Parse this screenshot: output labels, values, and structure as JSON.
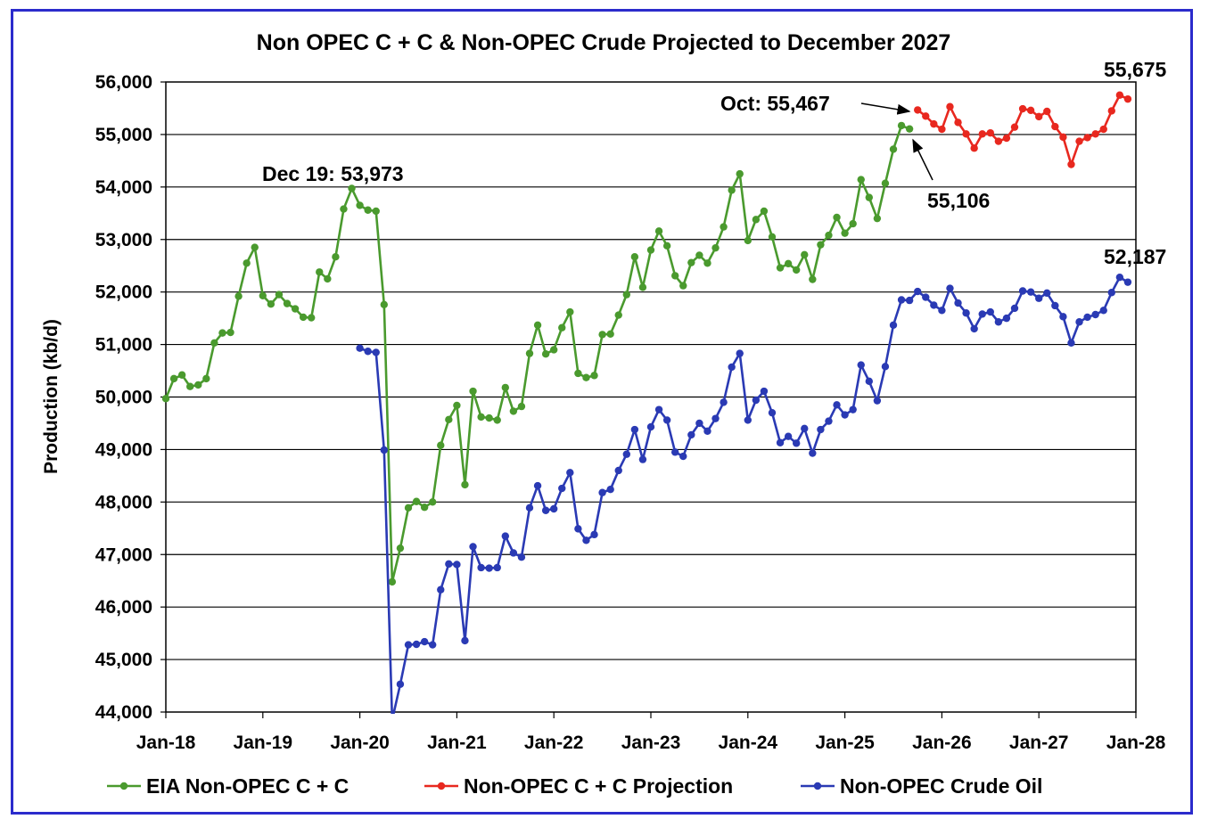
{
  "chart_data": {
    "type": "line",
    "title": "Non OPEC C + C & Non-OPEC Crude Projected to December 2027",
    "ylabel": "Production (kb/d)",
    "xlabel": "",
    "ylim": [
      44000,
      56000
    ],
    "yticks": [
      44000,
      45000,
      46000,
      47000,
      48000,
      49000,
      50000,
      51000,
      52000,
      53000,
      54000,
      55000,
      56000
    ],
    "ytick_labels": [
      "44,000",
      "45,000",
      "46,000",
      "47,000",
      "48,000",
      "49,000",
      "50,000",
      "51,000",
      "52,000",
      "53,000",
      "54,000",
      "55,000",
      "56,000"
    ],
    "xtick_labels": [
      "Jan-18",
      "Jan-19",
      "Jan-20",
      "Jan-21",
      "Jan-22",
      "Jan-23",
      "Jan-24",
      "Jan-25",
      "Jan-26",
      "Jan-27",
      "Jan-28"
    ],
    "grid": "horizontal",
    "legend_position": "bottom",
    "series": [
      {
        "name": "EIA Non-OPEC C + C",
        "color": "#4a9a2e",
        "start": "Jan-18",
        "values": [
          49970,
          50350,
          50420,
          50200,
          50230,
          50350,
          51030,
          51220,
          51230,
          51920,
          52550,
          52850,
          51930,
          51770,
          51950,
          51780,
          51680,
          51520,
          51510,
          52380,
          52250,
          52670,
          53580,
          53973,
          53650,
          53560,
          53540,
          51760,
          46480,
          47120,
          47890,
          48010,
          47900,
          48000,
          49080,
          49570,
          49840,
          48330,
          50110,
          49620,
          49600,
          49560,
          50180,
          49730,
          49820,
          50830,
          51370,
          50820,
          50900,
          51320,
          51620,
          50450,
          50370,
          50410,
          51190,
          51200,
          51560,
          51950,
          52670,
          52090,
          52800,
          53160,
          52880,
          52310,
          52120,
          52560,
          52700,
          52550,
          52840,
          53240,
          53940,
          54250,
          52980,
          53380,
          53540,
          53050,
          52460,
          52540,
          52420,
          52710,
          52240,
          52900,
          53080,
          53420,
          53120,
          53300,
          54140,
          53800,
          53400,
          54070,
          54720,
          55170,
          55106
        ]
      },
      {
        "name": "Non-OPEC C + C Projection",
        "color": "#e8281f",
        "start": "Oct-25",
        "values": [
          55467,
          55350,
          55200,
          55100,
          55530,
          55230,
          55010,
          54740,
          55010,
          55030,
          54870,
          54930,
          55140,
          55490,
          55460,
          55340,
          55440,
          55150,
          54950,
          54430,
          54870,
          54940,
          55010,
          55100,
          55450,
          55750,
          55675
        ]
      },
      {
        "name": "Non-OPEC Crude Oil",
        "color": "#2a3ab4",
        "start": "Jan-20",
        "values": [
          50930,
          50870,
          50850,
          48990,
          43850,
          44530,
          45280,
          45290,
          45340,
          45280,
          46330,
          46820,
          46810,
          45360,
          47150,
          46750,
          46740,
          46750,
          47350,
          47030,
          46950,
          47890,
          48310,
          47840,
          47870,
          48260,
          48560,
          47490,
          47270,
          47380,
          48180,
          48240,
          48600,
          48910,
          49380,
          48810,
          49430,
          49760,
          49560,
          48950,
          48870,
          49280,
          49500,
          49350,
          49590,
          49900,
          50570,
          50830,
          49560,
          49940,
          50110,
          49700,
          49130,
          49250,
          49120,
          49400,
          48930,
          49380,
          49540,
          49850,
          49660,
          49760,
          50610,
          50300,
          49930,
          50580,
          51370,
          51850,
          51840,
          52010,
          51900,
          51750,
          51650,
          52070,
          51790,
          51600,
          51300,
          51580,
          51620,
          51430,
          51500,
          51690,
          52020,
          52000,
          51880,
          51980,
          51740,
          51530,
          51030,
          51430,
          51520,
          51570,
          51650,
          51990,
          52280,
          52187
        ]
      }
    ],
    "annotations": [
      {
        "text": "Dec 19: 53,973"
      },
      {
        "text": "Oct: 55,467"
      },
      {
        "text": "55,106"
      },
      {
        "text": "55,675"
      },
      {
        "text": "52,187"
      }
    ]
  }
}
